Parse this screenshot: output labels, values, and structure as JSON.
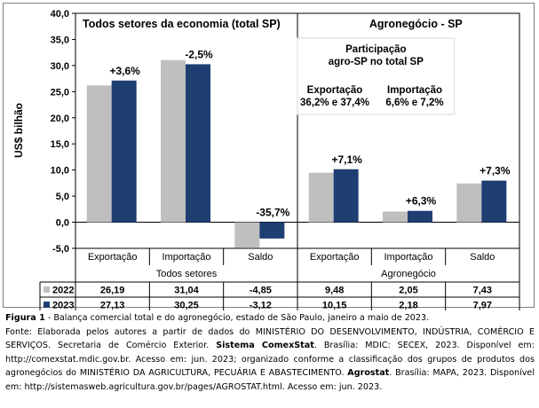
{
  "chart_data": {
    "type": "bar",
    "ylabel": "US$ bilhão",
    "ylim": [
      -5,
      40
    ],
    "yticks": [
      "40,0",
      "35,0",
      "30,0",
      "25,0",
      "20,0",
      "15,0",
      "10,0",
      "5,0",
      "0,0",
      "-5,0"
    ],
    "groups": [
      {
        "label": "Todos setores",
        "panel_title": "Todos setores da economia (total SP)"
      },
      {
        "label": "Agronegócio",
        "panel_title": "Agronegócio - SP"
      }
    ],
    "categories": [
      "Exportação",
      "Importação",
      "Saldo",
      "Exportação",
      "Importação",
      "Saldo"
    ],
    "series": [
      {
        "name": "2022",
        "color": "#bfbfbf",
        "values": [
          26.19,
          31.04,
          -4.85,
          9.48,
          2.05,
          7.43
        ],
        "table": [
          "26,19",
          "31,04",
          "-4,85",
          "9,48",
          "2,05",
          "7,43"
        ]
      },
      {
        "name": "2023",
        "color": "#1f3f73",
        "values": [
          27.13,
          30.25,
          -3.12,
          10.15,
          2.18,
          7.97
        ],
        "table": [
          "27,13",
          "30,25",
          "-3,12",
          "10,15",
          "2,18",
          "7,97"
        ]
      }
    ],
    "changes": [
      "+3,6%",
      "-2,5%",
      "-35,7%",
      "+7,1%",
      "+6,3%",
      "+7,3%"
    ],
    "annotation": {
      "title_line1": "Participação",
      "title_line2": "agro-SP no total SP",
      "col1_label": "Exportação",
      "col1_value": "36,2% e 37,4%",
      "col2_label": "Importação",
      "col2_value": "6,6% e 7,2%"
    },
    "grid": false
  },
  "caption": {
    "figure_label": "Figura 1",
    "figure_text": " - Balança comercial total e do agronegócio, estado de São Paulo, janeiro a maio de 2023.",
    "s1": "Fonte: Elaborada pelos autores a partir de dados do MINISTÉRIO DO DESENVOLVIMENTO, INDÚSTRIA, COMÉRCIO E SERVIÇOS. Secretaria de Comércio Exterior. ",
    "b1": "Sistema ComexStat",
    "s2": ". Brasília: MDIC: SECEX, 2023. Disponível em: http://comexstat.mdic.gov.br. Acesso em: jun. 2023; organizado conforme a classificação dos grupos de produtos dos agronegócios do MINISTÉRIO DA AGRICULTURA, PECUÁRIA E ABASTECIMENTO. ",
    "b2": "Agrostat",
    "s3": ". Brasília: MAPA, 2023. Disponível em: http://sistemasweb.agricultura.gov.br/pages/AGROSTAT.html. Acesso em: jun. 2023."
  }
}
